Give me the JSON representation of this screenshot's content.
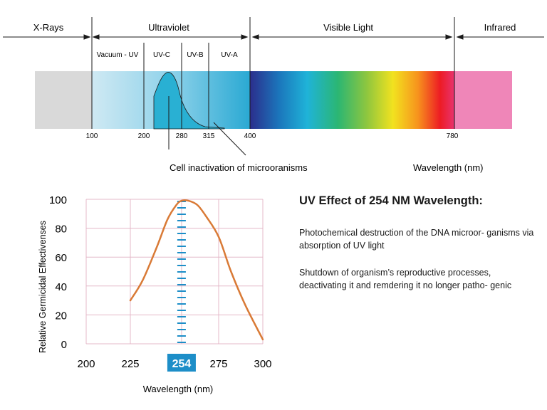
{
  "spectrum": {
    "bands": {
      "xrays": "X-Rays",
      "ultraviolet": "Ultraviolet",
      "visible": "Visible Light",
      "infrared": "Infrared"
    },
    "sub_bands": {
      "vacuum_uv": "Vacuum - UV",
      "uvc": "UV-C",
      "uvb": "UV-B",
      "uva": "UV-A"
    },
    "ticks": [
      "100",
      "200",
      "280",
      "315",
      "400",
      "780"
    ],
    "annotation": "Cell inactivation of microoranisms",
    "axis_label": "Wavelength (nm)",
    "colors": {
      "xray": "#d9d9d9",
      "infrared": "#ef86b8",
      "uv_light": "#cfe9f3",
      "uv_mid": "#5cbfdf",
      "uvc_curve_fill": "#29b0d3",
      "visible_stops": [
        "#2b2e8c",
        "#1b75bb",
        "#1fb3d8",
        "#2bb673",
        "#8dc63f",
        "#f2e21f",
        "#f7941d",
        "#ed1c24",
        "#e8336f"
      ]
    }
  },
  "chart_data": {
    "type": "line",
    "title": "",
    "xlabel": "Wavelength (nm)",
    "ylabel": "Relative Germicidal Effectivenses",
    "xlim": [
      200,
      300
    ],
    "ylim": [
      0,
      100
    ],
    "x_ticks": [
      "200",
      "225",
      "254",
      "275",
      "300"
    ],
    "y_ticks": [
      "0",
      "20",
      "40",
      "60",
      "80",
      "100"
    ],
    "highlight_x": "254",
    "grid": true,
    "series": [
      {
        "x": [
          225,
          232,
          240,
          246,
          251,
          254,
          258,
          263,
          268,
          275,
          282,
          290,
          300
        ],
        "y": [
          30,
          44,
          67,
          86,
          96,
          99,
          99,
          96,
          88,
          74,
          50,
          27,
          3
        ],
        "color": "#d97a36"
      }
    ],
    "colors": {
      "grid": "#e4b8c8",
      "highlight": "#1d8ec8",
      "curve": "#d97a36"
    }
  },
  "info": {
    "title": "UV Effect of 254 NM Wavelength:",
    "p1": "Photochemical destruction of the DNA microor- ganisms via absorption of UV light",
    "p2": "Shutdown of organism’s reproductive processes, deactivating it and remdering it no longer patho- genic"
  }
}
